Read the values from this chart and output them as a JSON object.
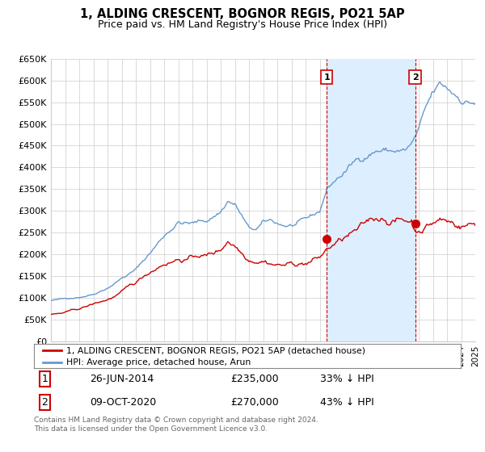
{
  "title": "1, ALDING CRESCENT, BOGNOR REGIS, PO21 5AP",
  "subtitle": "Price paid vs. HM Land Registry's House Price Index (HPI)",
  "ylabel_ticks": [
    "£0",
    "£50K",
    "£100K",
    "£150K",
    "£200K",
    "£250K",
    "£300K",
    "£350K",
    "£400K",
    "£450K",
    "£500K",
    "£550K",
    "£600K",
    "£650K"
  ],
  "ytick_values": [
    0,
    50000,
    100000,
    150000,
    200000,
    250000,
    300000,
    350000,
    400000,
    450000,
    500000,
    550000,
    600000,
    650000
  ],
  "legend_line1": "1, ALDING CRESCENT, BOGNOR REGIS, PO21 5AP (detached house)",
  "legend_line2": "HPI: Average price, detached house, Arun",
  "annotation1_label": "1",
  "annotation1_date": "26-JUN-2014",
  "annotation1_price": "£235,000",
  "annotation1_hpi": "33% ↓ HPI",
  "annotation2_label": "2",
  "annotation2_date": "09-OCT-2020",
  "annotation2_price": "£270,000",
  "annotation2_hpi": "43% ↓ HPI",
  "footer": "Contains HM Land Registry data © Crown copyright and database right 2024.\nThis data is licensed under the Open Government Licence v3.0.",
  "red_color": "#cc0000",
  "blue_color": "#6699cc",
  "shade_color": "#ddeeff",
  "background_color": "#ffffff",
  "grid_color": "#cccccc",
  "sale1_year": 2014.5,
  "sale1_price": 235000,
  "sale2_year": 2020.75,
  "sale2_price": 270000,
  "xmin": 1995,
  "xmax": 2025,
  "ymin": 0,
  "ymax": 650000
}
